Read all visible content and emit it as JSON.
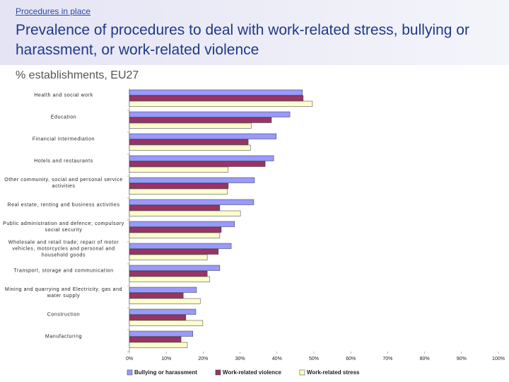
{
  "chart_data": {
    "type": "barh",
    "section": "Procedures in place",
    "title": "Prevalence of procedures to deal with work-related stress, bullying or harassment, or work-related violence",
    "subtitle": "% establishments, EU27",
    "categories": [
      "Health and social work",
      "Education",
      "Financial intermediation",
      "Hotels and restaurants",
      "Other community, social and personal service activities",
      "Real estate, renting and business activities",
      "Public administration and defence; compulsory social security",
      "Wholesale and retail trade; repair of motor vehicles, motorcycles and personal and household goods",
      "Transport, storage and communication",
      "Mining and quarrying and Electricity, gas and water supply",
      "Construction",
      "Manufacturing"
    ],
    "series": [
      {
        "name": "Bullying or harassment",
        "color": "#9999ff",
        "values": [
          46.9,
          43.5,
          39.8,
          39.1,
          33.9,
          33.7,
          28.5,
          27.6,
          24.5,
          18.2,
          18.0,
          17.2
        ]
      },
      {
        "name": "Work-related violence",
        "color": "#993366",
        "values": [
          47.1,
          38.5,
          32.2,
          36.8,
          26.8,
          24.5,
          24.9,
          24.1,
          21.1,
          14.6,
          15.3,
          14.0
        ]
      },
      {
        "name": "Work-related stress",
        "color": "#ffffcc",
        "values": [
          49.6,
          33.0,
          32.8,
          26.8,
          26.6,
          30.1,
          24.5,
          21.1,
          21.8,
          19.2,
          19.9,
          15.7
        ]
      }
    ],
    "xlim": [
      0,
      100
    ],
    "xticks": [
      {
        "value": 0,
        "label": "0%"
      },
      {
        "value": 10,
        "label": "10%"
      },
      {
        "value": 20,
        "label": "20%"
      },
      {
        "value": 30,
        "label": "30%"
      },
      {
        "value": 40,
        "label": "40%"
      },
      {
        "value": 50,
        "label": "50%"
      },
      {
        "value": 60,
        "label": "60%"
      },
      {
        "value": 70,
        "label": "70%"
      },
      {
        "value": 80,
        "label": "80%"
      },
      {
        "value": 90,
        "label": "90%"
      },
      {
        "value": 100,
        "label": "100%"
      }
    ],
    "legend": "bottom"
  }
}
